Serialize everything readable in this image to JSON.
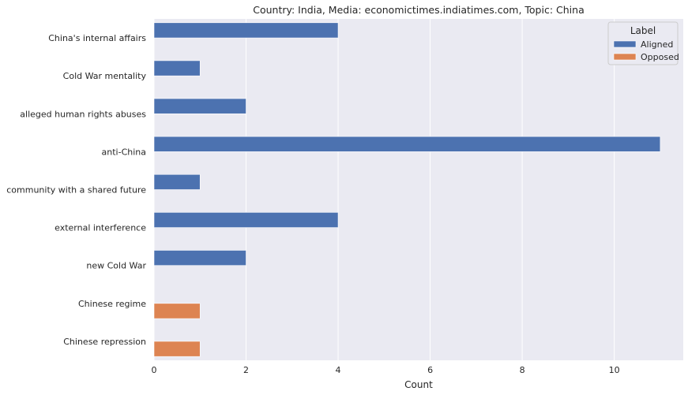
{
  "chart_data": {
    "type": "bar",
    "orientation": "horizontal",
    "title": "Country: India, Media: economictimes.indiatimes.com, Topic: China",
    "xlabel": "Count",
    "ylabel": "",
    "xlim": [
      0,
      11.5
    ],
    "xticks": [
      0,
      2,
      4,
      6,
      8,
      10
    ],
    "grid": true,
    "categories": [
      "China's internal affairs",
      "Cold War mentality",
      "alleged human rights abuses",
      "anti-China",
      "community with a shared future",
      "external interference",
      "new Cold War",
      "Chinese regime",
      "Chinese repression"
    ],
    "series": [
      {
        "name": "Aligned",
        "color": "#4c72b0",
        "values": [
          4,
          1,
          2,
          11,
          1,
          4,
          2,
          null,
          null
        ]
      },
      {
        "name": "Opposed",
        "color": "#dd8452",
        "values": [
          null,
          null,
          null,
          null,
          null,
          null,
          null,
          1,
          1
        ]
      }
    ],
    "legend": {
      "title": "Label",
      "placement": "top-right"
    }
  }
}
